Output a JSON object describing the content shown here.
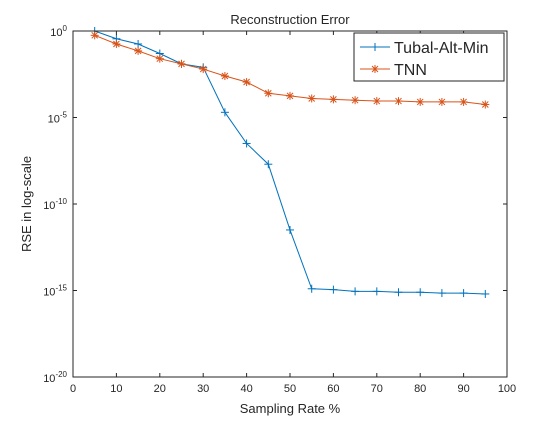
{
  "chart_data": {
    "type": "line",
    "title": "Reconstruction Error",
    "xlabel": "Sampling Rate %",
    "ylabel": "RSE in log-scale",
    "xlim": [
      0,
      100
    ],
    "ylim_log10": [
      -20,
      0
    ],
    "yscale": "log",
    "grid": false,
    "legend_position": "top-right",
    "x_ticks": [
      0,
      10,
      20,
      30,
      40,
      50,
      60,
      70,
      80,
      90,
      100
    ],
    "x_tick_labels": [
      "0",
      "10",
      "20",
      "30",
      "40",
      "50",
      "60",
      "70",
      "80",
      "90",
      "100"
    ],
    "y_ticks_log10": [
      0,
      -5,
      -10,
      -15,
      -20
    ],
    "y_tick_labels": [
      {
        "base": "10",
        "exp": "0"
      },
      {
        "base": "10",
        "exp": "-5"
      },
      {
        "base": "10",
        "exp": "-10"
      },
      {
        "base": "10",
        "exp": "-15"
      },
      {
        "base": "10",
        "exp": "-20"
      }
    ],
    "x": [
      5,
      10,
      15,
      20,
      25,
      30,
      35,
      40,
      45,
      50,
      55,
      60,
      65,
      70,
      75,
      80,
      85,
      90,
      95
    ],
    "series": [
      {
        "name": "Tubal-Alt-Min",
        "color": "#0072BD",
        "marker": "plus",
        "log10_values": [
          0,
          -0.45,
          -0.75,
          -1.3,
          -1.9,
          -2.1,
          -4.7,
          -6.5,
          -7.7,
          -11.5,
          -14.9,
          -14.95,
          -15.05,
          -15.05,
          -15.1,
          -15.1,
          -15.15,
          -15.15,
          -15.2
        ]
      },
      {
        "name": "TNN",
        "color": "#D95319",
        "marker": "star",
        "log10_values": [
          -0.25,
          -0.75,
          -1.15,
          -1.6,
          -1.9,
          -2.2,
          -2.6,
          -2.95,
          -3.6,
          -3.75,
          -3.9,
          -3.95,
          -4.0,
          -4.05,
          -4.05,
          -4.1,
          -4.1,
          -4.1,
          -4.25
        ]
      }
    ]
  }
}
